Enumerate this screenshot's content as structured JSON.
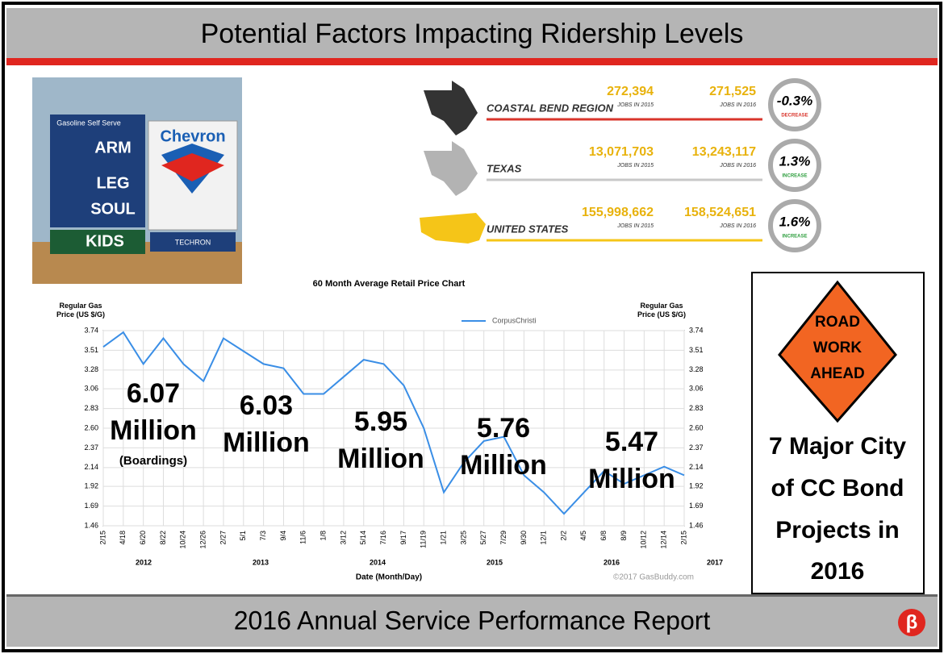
{
  "header": {
    "title": "Potential Factors Impacting Ridership Levels"
  },
  "station_sign": {
    "heading": "Gasoline  Self Serve",
    "brand": "Chevron",
    "rows": [
      "ARM",
      "LEG",
      "SOUL",
      "KIDS"
    ],
    "badge": "TECHRON"
  },
  "jobs": [
    {
      "region": "COASTAL BEND REGION",
      "jobs_2015": "272,394",
      "label_2015": "JOBS IN 2015",
      "jobs_2016": "271,525",
      "label_2016": "JOBS IN 2016",
      "change": "-0.3%",
      "direction": "DECREASE",
      "color": "#333333",
      "line": "#d9342b"
    },
    {
      "region": "TEXAS",
      "jobs_2015": "13,071,703",
      "label_2015": "JOBS IN 2015",
      "jobs_2016": "13,243,117",
      "label_2016": "JOBS IN 2016",
      "change": "1.3%",
      "direction": "INCREASE",
      "color": "#b3b3b3",
      "line": "#c8c8c8"
    },
    {
      "region": "UNITED STATES",
      "jobs_2015": "155,998,662",
      "label_2015": "JOBS IN 2015",
      "jobs_2016": "158,524,651",
      "label_2016": "JOBS IN 2016",
      "change": "1.6%",
      "direction": "INCREASE",
      "color": "#f5c518",
      "line": "#f5c518"
    }
  ],
  "chart_data": {
    "type": "line",
    "title": "60 Month Average Retail Price Chart",
    "y_label": "Regular Gas Price (US $/G)",
    "x_label": "Date (Month/Day)",
    "credit": "©2017 GasBuddy.com",
    "categories": [
      "2/15",
      "4/18",
      "6/20",
      "8/22",
      "10/24",
      "12/26",
      "2/27",
      "5/1",
      "7/3",
      "9/4",
      "11/6",
      "1/8",
      "3/12",
      "5/14",
      "7/16",
      "9/17",
      "11/19",
      "1/21",
      "3/25",
      "5/27",
      "7/29",
      "9/30",
      "12/1",
      "2/2",
      "4/5",
      "6/8",
      "8/9",
      "10/12",
      "12/14",
      "2/15"
    ],
    "years": [
      "2012",
      "2013",
      "2014",
      "2015",
      "2016",
      "2017"
    ],
    "series": [
      {
        "name": "CorpusChristi",
        "color": "#3a8ee6",
        "values": [
          3.55,
          3.72,
          3.35,
          3.65,
          3.35,
          3.15,
          3.65,
          3.5,
          3.35,
          3.3,
          3.0,
          3.0,
          3.2,
          3.4,
          3.35,
          3.1,
          2.6,
          1.85,
          2.2,
          2.45,
          2.5,
          2.05,
          1.85,
          1.6,
          1.85,
          2.1,
          1.95,
          2.05,
          2.15,
          2.05
        ]
      }
    ],
    "ylim": [
      1.46,
      3.74
    ],
    "yticks": [
      1.46,
      1.69,
      1.92,
      2.14,
      2.37,
      {
        "value": 2.6,
        "label": "2.60"
      },
      2.83,
      3.06,
      3.28,
      3.51,
      3.74
    ],
    "grid": true
  },
  "boardings": [
    {
      "value": "6.07",
      "unit": "Million",
      "note": "(Boardings)"
    },
    {
      "value": "6.03",
      "unit": "Million"
    },
    {
      "value": "5.95",
      "unit": "Million"
    },
    {
      "value": "5.76",
      "unit": "Million"
    },
    {
      "value": "5.47",
      "unit": "Million"
    }
  ],
  "road_sign": {
    "lines": [
      "ROAD",
      "WORK",
      "AHEAD"
    ],
    "caption": [
      "7 Major City",
      "of CC Bond",
      "Projects in",
      "2016"
    ]
  },
  "footer": {
    "title": "2016 Annual Service Performance Report",
    "logo": "β"
  }
}
